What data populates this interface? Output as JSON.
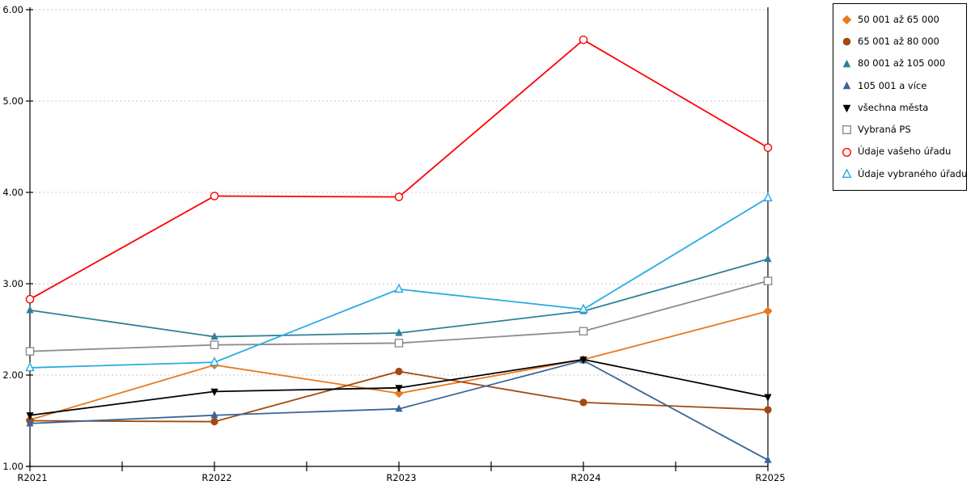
{
  "chart_data": {
    "type": "line",
    "title": "",
    "xlabel": "",
    "ylabel": "",
    "x_categories": [
      "R2021",
      "R2022",
      "R2023",
      "R2024",
      "R2025"
    ],
    "ylim": [
      1.0,
      6.0
    ],
    "ytick_labels": [
      "1.00",
      "2.00",
      "3.00",
      "4.00",
      "5.00",
      "6.00"
    ],
    "grid": "horizontal dashed gridlines at each 1.00 step",
    "legend_position": "outside top-right, boxed",
    "series": [
      {
        "name": "50 001 až 65 000",
        "marker": "diamond",
        "marker_fill": "solid",
        "color": "#E8791E",
        "values": [
          1.51,
          2.11,
          1.8,
          2.17,
          2.7
        ]
      },
      {
        "name": "65 001 až 80 000",
        "marker": "circle",
        "marker_fill": "solid",
        "color": "#A24A10",
        "values": [
          1.5,
          1.49,
          2.04,
          1.7,
          1.62
        ]
      },
      {
        "name": "80 001 až 105 000",
        "marker": "triangle-up",
        "marker_fill": "solid",
        "color": "#2E8098",
        "values": [
          2.71,
          2.42,
          2.46,
          2.7,
          3.27
        ]
      },
      {
        "name": "105 001 a více",
        "marker": "triangle-up",
        "marker_fill": "solid",
        "color": "#3A6598",
        "values": [
          1.47,
          1.56,
          1.63,
          2.16,
          1.07
        ]
      },
      {
        "name": "všechna města",
        "marker": "triangle-down",
        "marker_fill": "solid",
        "color": "#000000",
        "values": [
          1.56,
          1.82,
          1.86,
          2.17,
          1.76
        ]
      },
      {
        "name": "Vybraná PS",
        "marker": "square",
        "marker_fill": "open",
        "color": "#8C8C8C",
        "values": [
          2.26,
          2.33,
          2.35,
          2.48,
          3.03
        ]
      },
      {
        "name": "Údaje vašeho úřadu",
        "marker": "circle",
        "marker_fill": "open",
        "color": "#FF0000",
        "values": [
          2.83,
          3.96,
          3.95,
          5.67,
          4.49
        ]
      },
      {
        "name": "Údaje vybraného úřadu",
        "marker": "triangle-up",
        "marker_fill": "open",
        "color": "#29ABE2",
        "values": [
          2.08,
          2.14,
          2.94,
          2.72,
          3.94
        ]
      }
    ]
  },
  "axis_colors": {
    "axis_line": "#000000",
    "gridline": "#c9c9c9",
    "tick_label": "#000000"
  }
}
